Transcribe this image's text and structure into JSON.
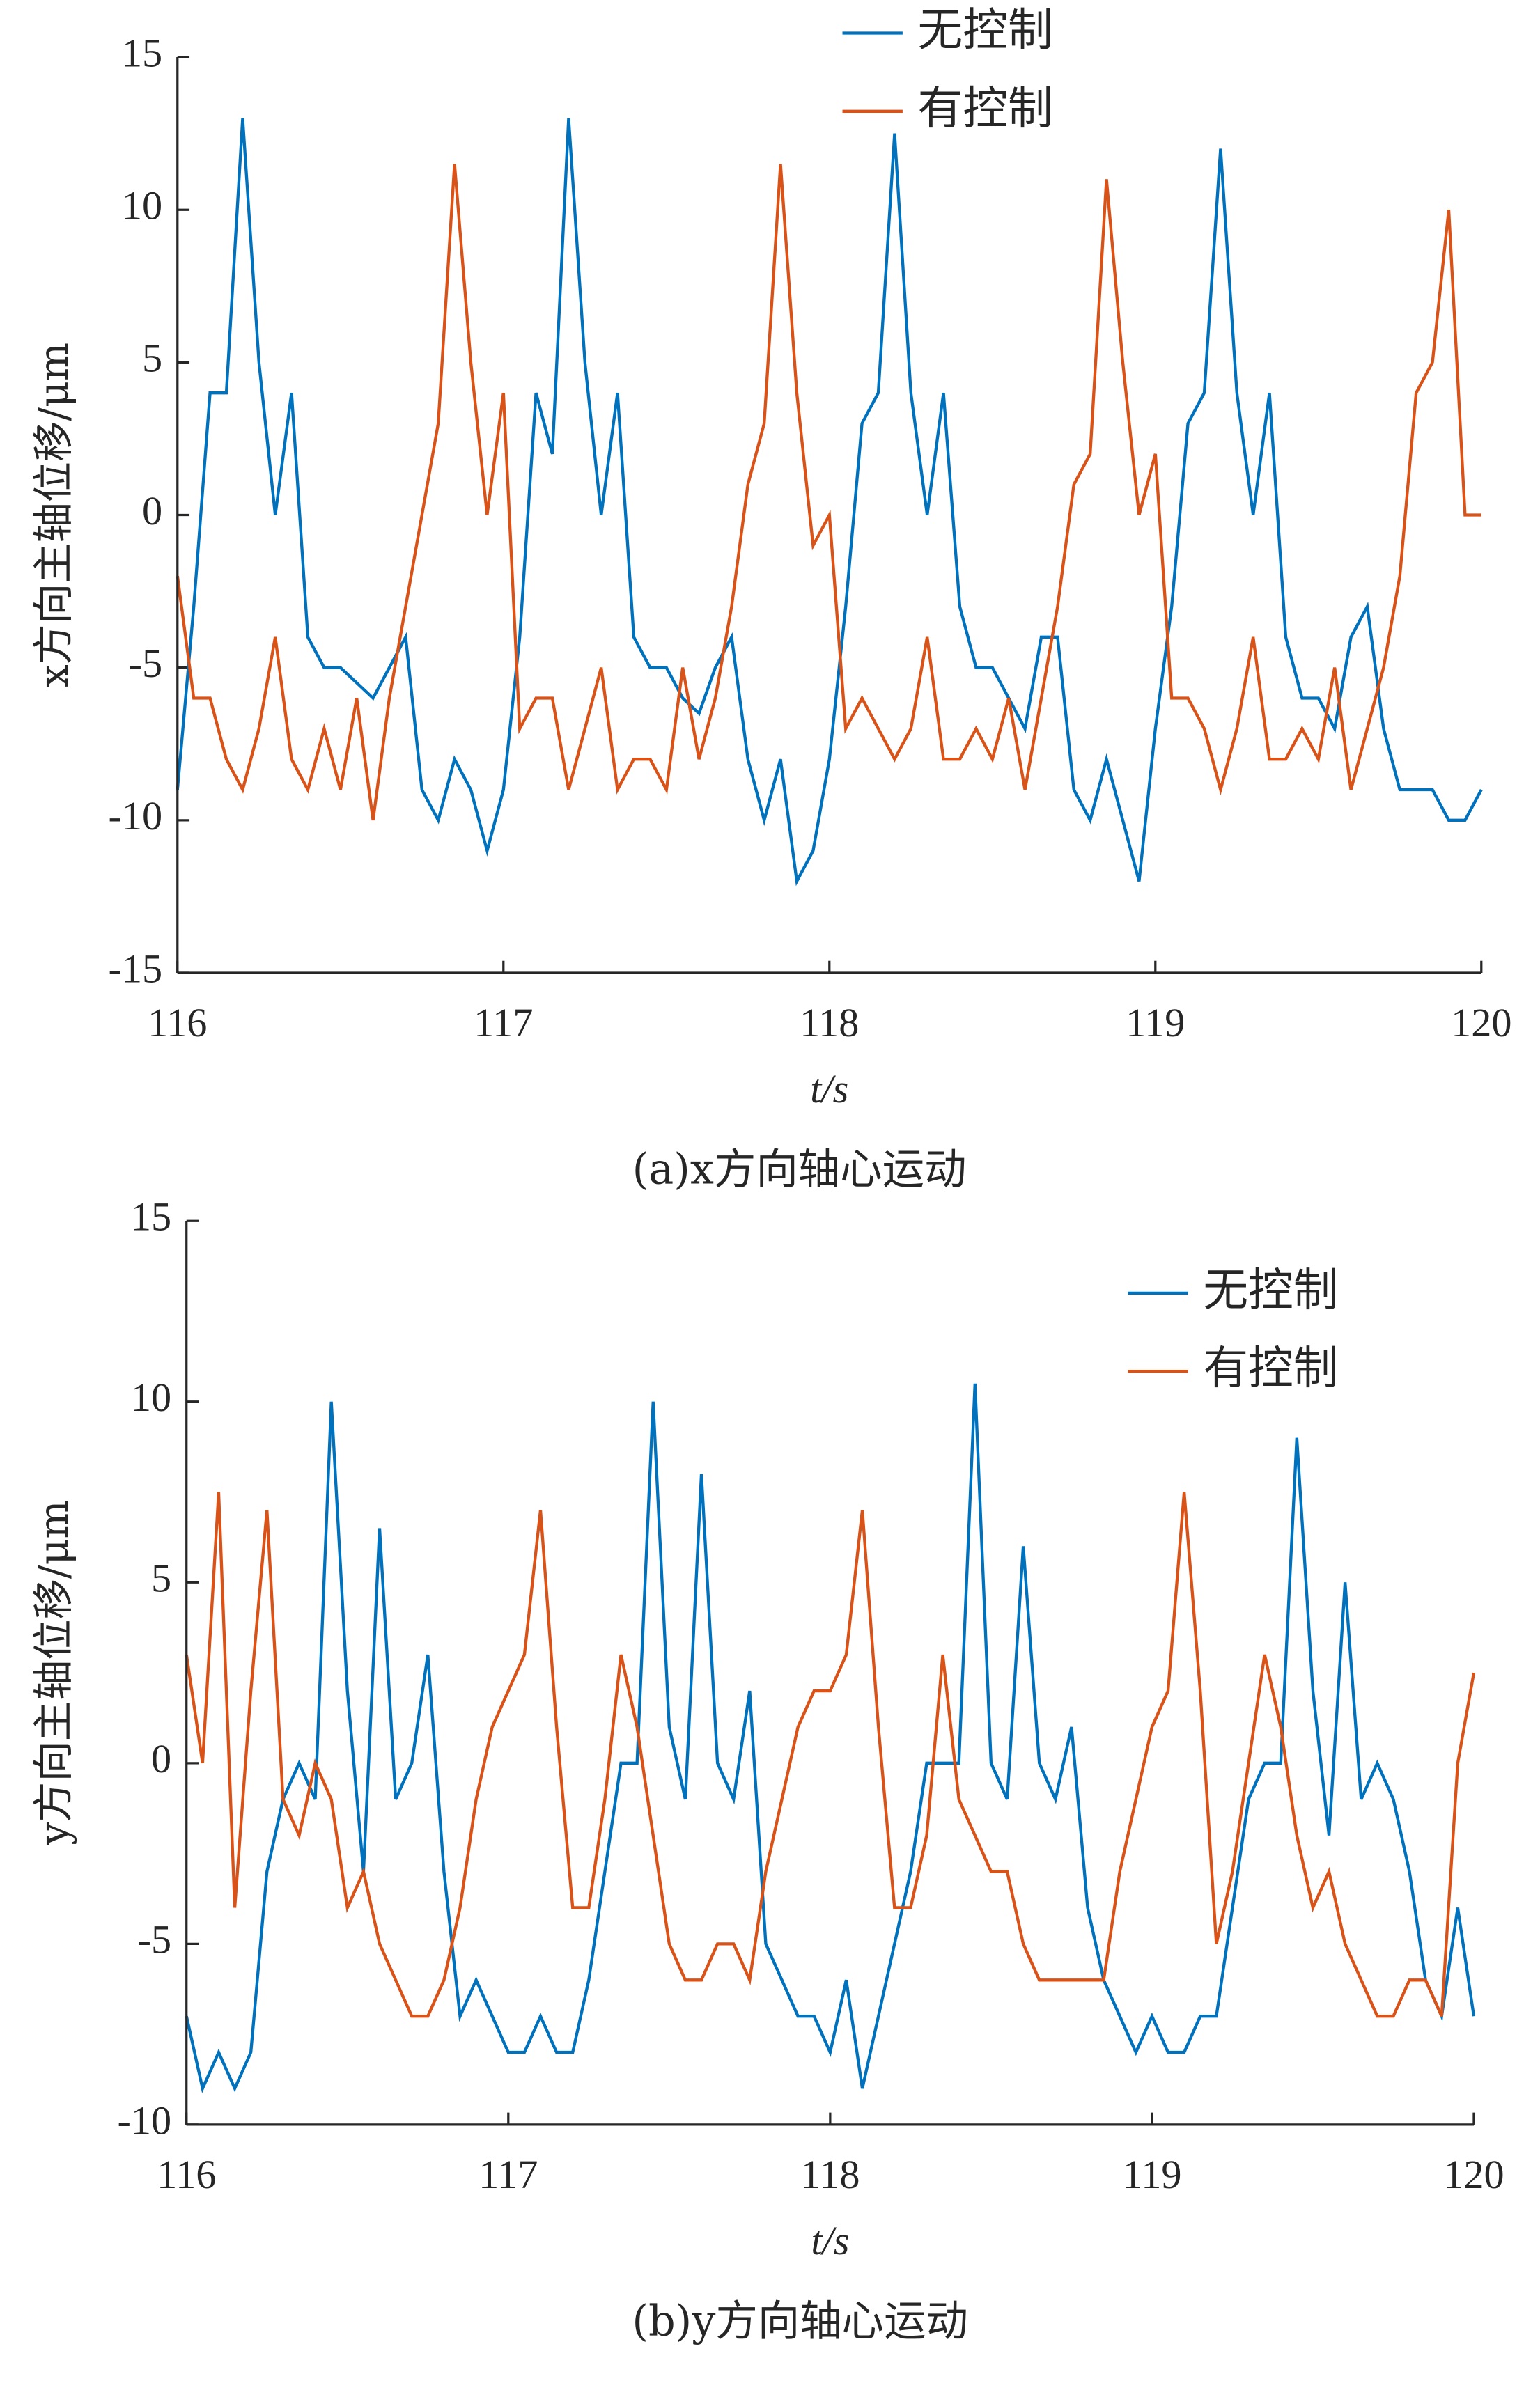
{
  "chart_data": [
    {
      "type": "line",
      "x_label": "t/s",
      "y_label": "x方向主轴位移/μm",
      "caption": "(a)x方向轴心运动",
      "xlim": [
        116,
        120
      ],
      "xticks": [
        116,
        117,
        118,
        119,
        120
      ],
      "ylim": [
        -15,
        15
      ],
      "yticks": [
        -15,
        -10,
        -5,
        0,
        5,
        10,
        15
      ],
      "legend": "north",
      "x": [
        116,
        116.05,
        116.1,
        116.15,
        116.2,
        116.25,
        116.3,
        116.35,
        116.4,
        116.45,
        116.5,
        116.55,
        116.6,
        116.65,
        116.7,
        116.75,
        116.8,
        116.85,
        116.9,
        116.95,
        117,
        117.05,
        117.1,
        117.15,
        117.2,
        117.25,
        117.3,
        117.35,
        117.4,
        117.45,
        117.5,
        117.55,
        117.6,
        117.65,
        117.7,
        117.75,
        117.8,
        117.85,
        117.9,
        117.95,
        118,
        118.05,
        118.1,
        118.15,
        118.2,
        118.25,
        118.3,
        118.35,
        118.4,
        118.45,
        118.5,
        118.55,
        118.6,
        118.65,
        118.7,
        118.75,
        118.8,
        118.85,
        118.9,
        118.95,
        119,
        119.05,
        119.1,
        119.15,
        119.2,
        119.25,
        119.3,
        119.35,
        119.4,
        119.45,
        119.5,
        119.55,
        119.6,
        119.65,
        119.7,
        119.75,
        119.8,
        119.85,
        119.9,
        119.95,
        120
      ],
      "series": [
        {
          "name": "无控制",
          "color": "#0072BD",
          "values": [
            -9,
            -3,
            4,
            4,
            13,
            5,
            0,
            4,
            -4,
            -5,
            -5,
            -5.5,
            -6,
            -5,
            -4,
            -9,
            -10,
            -8,
            -9,
            -11,
            -9,
            -4,
            4,
            2,
            13,
            5,
            0,
            4,
            -4,
            -5,
            -5,
            -6,
            -6.5,
            -5,
            -4,
            -8,
            -10,
            -8,
            -12,
            -11,
            -8,
            -3,
            3,
            4,
            12.5,
            4,
            0,
            4,
            -3,
            -5,
            -5,
            -6,
            -7,
            -4,
            -4,
            -9,
            -10,
            -8,
            -10,
            -12,
            -7,
            -3,
            3,
            4,
            12,
            4,
            0,
            4,
            -4,
            -6,
            -6,
            -7,
            -4,
            -3,
            -7,
            -9,
            -9,
            -9,
            -10,
            -10,
            -9
          ]
        },
        {
          "name": "有控制",
          "color": "#D95319",
          "values": [
            -2,
            -6,
            -6,
            -8,
            -9,
            -7,
            -4,
            -8,
            -9,
            -7,
            -9,
            -6,
            -10,
            -6,
            -3,
            0,
            3,
            11.5,
            5,
            0,
            4,
            -7,
            -6,
            -6,
            -9,
            -7,
            -5,
            -9,
            -8,
            -8,
            -9,
            -5,
            -8,
            -6,
            -3,
            1,
            3,
            11.5,
            4,
            -1,
            0,
            -7,
            -6,
            -7,
            -8,
            -7,
            -4,
            -8,
            -8,
            -7,
            -8,
            -6,
            -9,
            -6,
            -3,
            1,
            2,
            11,
            5,
            0,
            2,
            -6,
            -6,
            -7,
            -9,
            -7,
            -4,
            -8,
            -8,
            -7,
            -8,
            -5,
            -9,
            -7,
            -5,
            -2,
            4,
            5,
            10,
            0,
            0
          ]
        }
      ]
    },
    {
      "type": "line",
      "x_label": "t/s",
      "y_label": "y方向主轴位移/μm",
      "caption": "(b)y方向轴心运动",
      "xlim": [
        116,
        120
      ],
      "xticks": [
        116,
        117,
        118,
        119,
        120
      ],
      "ylim": [
        -10,
        15
      ],
      "yticks": [
        -10,
        -5,
        0,
        5,
        10,
        15
      ],
      "legend": "northeast",
      "x": [
        116,
        116.05,
        116.1,
        116.15,
        116.2,
        116.25,
        116.3,
        116.35,
        116.4,
        116.45,
        116.5,
        116.55,
        116.6,
        116.65,
        116.7,
        116.75,
        116.8,
        116.85,
        116.9,
        116.95,
        117,
        117.05,
        117.1,
        117.15,
        117.2,
        117.25,
        117.3,
        117.35,
        117.4,
        117.45,
        117.5,
        117.55,
        117.6,
        117.65,
        117.7,
        117.75,
        117.8,
        117.85,
        117.9,
        117.95,
        118,
        118.05,
        118.1,
        118.15,
        118.2,
        118.25,
        118.3,
        118.35,
        118.4,
        118.45,
        118.5,
        118.55,
        118.6,
        118.65,
        118.7,
        118.75,
        118.8,
        118.85,
        118.9,
        118.95,
        119,
        119.05,
        119.1,
        119.15,
        119.2,
        119.25,
        119.3,
        119.35,
        119.4,
        119.45,
        119.5,
        119.55,
        119.6,
        119.65,
        119.7,
        119.75,
        119.8,
        119.85,
        119.9,
        119.95,
        120
      ],
      "series": [
        {
          "name": "无控制",
          "color": "#0072BD",
          "values": [
            -7,
            -9,
            -8,
            -9,
            -8,
            -3,
            -1,
            0,
            -1,
            10,
            2,
            -3,
            6.5,
            -1,
            0,
            3,
            -3,
            -7,
            -6,
            -7,
            -8,
            -8,
            -7,
            -8,
            -8,
            -6,
            -3,
            0,
            0,
            10,
            1,
            -1,
            8,
            0,
            -1,
            2,
            -5,
            -6,
            -7,
            -7,
            -8,
            -6,
            -9,
            -7,
            -5,
            -3,
            0,
            0,
            0,
            10.5,
            0,
            -1,
            6,
            0,
            -1,
            1,
            -4,
            -6,
            -7,
            -8,
            -7,
            -8,
            -8,
            -7,
            -7,
            -4,
            -1,
            0,
            0,
            9,
            2,
            -2,
            5,
            -1,
            0,
            -1,
            -3,
            -6,
            -7,
            -4,
            -7
          ]
        },
        {
          "name": "有控制",
          "color": "#D95319",
          "values": [
            3,
            0,
            7.5,
            -4,
            2,
            7,
            -1,
            -2,
            0,
            -1,
            -4,
            -3,
            -5,
            -6,
            -7,
            -7,
            -6,
            -4,
            -1,
            1,
            2,
            3,
            7,
            1,
            -4,
            -4,
            -1,
            3,
            1,
            -2,
            -5,
            -6,
            -6,
            -5,
            -5,
            -6,
            -3,
            -1,
            1,
            2,
            2,
            3,
            7,
            1,
            -4,
            -4,
            -2,
            3,
            -1,
            -2,
            -3,
            -3,
            -5,
            -6,
            -6,
            -6,
            -6,
            -6,
            -3,
            -1,
            1,
            2,
            7.5,
            2,
            -5,
            -3,
            0,
            3,
            1,
            -2,
            -4,
            -3,
            -5,
            -6,
            -7,
            -7,
            -6,
            -6,
            -7,
            0,
            2.5
          ]
        }
      ]
    }
  ]
}
